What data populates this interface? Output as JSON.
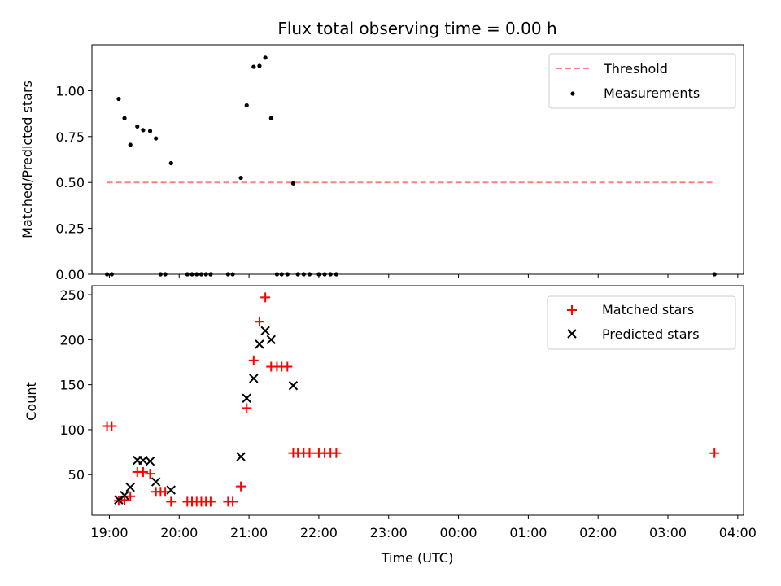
{
  "chart_data": [
    {
      "type": "scatter",
      "title": "Flux total observing time = 0.00 h",
      "xlabel": "",
      "ylabel": "Matched/Predicted stars",
      "xlim": [
        "18:45",
        "04:05"
      ],
      "ylim": [
        0,
        1.25
      ],
      "yticks": [
        "0.00",
        "0.25",
        "0.50",
        "0.75",
        "1.00"
      ],
      "legend_position": "top-right",
      "threshold": {
        "name": "Threshold",
        "value": 0.5,
        "x_range": [
          "18:58",
          "03:40"
        ],
        "color": "#ff8080",
        "style": "dashed"
      },
      "series": [
        {
          "name": "Measurements",
          "marker": "dot",
          "color": "#000000",
          "points": [
            {
              "x": "18:58",
              "y": 0
            },
            {
              "x": "19:02",
              "y": 0
            },
            {
              "x": "19:08",
              "y": 0.955
            },
            {
              "x": "19:13",
              "y": 0.85
            },
            {
              "x": "19:18",
              "y": 0.705
            },
            {
              "x": "19:24",
              "y": 0.805
            },
            {
              "x": "19:29",
              "y": 0.785
            },
            {
              "x": "19:35",
              "y": 0.78
            },
            {
              "x": "19:40",
              "y": 0.74
            },
            {
              "x": "19:44",
              "y": 0
            },
            {
              "x": "19:48",
              "y": 0
            },
            {
              "x": "19:53",
              "y": 0.605
            },
            {
              "x": "20:07",
              "y": 0
            },
            {
              "x": "20:11",
              "y": 0
            },
            {
              "x": "20:15",
              "y": 0
            },
            {
              "x": "20:19",
              "y": 0
            },
            {
              "x": "20:23",
              "y": 0
            },
            {
              "x": "20:27",
              "y": 0
            },
            {
              "x": "20:42",
              "y": 0
            },
            {
              "x": "20:46",
              "y": 0
            },
            {
              "x": "20:53",
              "y": 0.525
            },
            {
              "x": "20:58",
              "y": 0.92
            },
            {
              "x": "21:04",
              "y": 1.13
            },
            {
              "x": "21:09",
              "y": 1.135
            },
            {
              "x": "21:14",
              "y": 1.18
            },
            {
              "x": "21:19",
              "y": 0.85
            },
            {
              "x": "21:24",
              "y": 0
            },
            {
              "x": "21:28",
              "y": 0
            },
            {
              "x": "21:33",
              "y": 0
            },
            {
              "x": "21:38",
              "y": 0.495
            },
            {
              "x": "21:42",
              "y": 0
            },
            {
              "x": "21:47",
              "y": 0
            },
            {
              "x": "21:52",
              "y": 0
            },
            {
              "x": "22:00",
              "y": 0
            },
            {
              "x": "22:05",
              "y": 0
            },
            {
              "x": "22:10",
              "y": 0
            },
            {
              "x": "22:15",
              "y": 0
            },
            {
              "x": "03:40",
              "y": 0
            }
          ]
        }
      ]
    },
    {
      "type": "scatter",
      "title": "",
      "xlabel": "Time (UTC)",
      "ylabel": "Count",
      "xlim": [
        "18:45",
        "04:05"
      ],
      "ylim": [
        5,
        260
      ],
      "xticks": [
        "19:00",
        "20:00",
        "21:00",
        "22:00",
        "23:00",
        "00:00",
        "01:00",
        "02:00",
        "03:00",
        "04:00"
      ],
      "yticks": [
        "50",
        "100",
        "150",
        "200",
        "250"
      ],
      "legend_position": "top-right",
      "series": [
        {
          "name": "Matched stars",
          "marker": "plus",
          "color": "#ff0000",
          "points": [
            {
              "x": "18:58",
              "y": 104
            },
            {
              "x": "19:02",
              "y": 104
            },
            {
              "x": "19:08",
              "y": 21
            },
            {
              "x": "19:13",
              "y": 22
            },
            {
              "x": "19:18",
              "y": 26
            },
            {
              "x": "19:24",
              "y": 53
            },
            {
              "x": "19:29",
              "y": 53
            },
            {
              "x": "19:35",
              "y": 51
            },
            {
              "x": "19:40",
              "y": 31
            },
            {
              "x": "19:44",
              "y": 31
            },
            {
              "x": "19:48",
              "y": 31
            },
            {
              "x": "19:53",
              "y": 20
            },
            {
              "x": "20:07",
              "y": 20
            },
            {
              "x": "20:11",
              "y": 20
            },
            {
              "x": "20:15",
              "y": 20
            },
            {
              "x": "20:19",
              "y": 20
            },
            {
              "x": "20:23",
              "y": 20
            },
            {
              "x": "20:27",
              "y": 20
            },
            {
              "x": "20:42",
              "y": 20
            },
            {
              "x": "20:46",
              "y": 20
            },
            {
              "x": "20:53",
              "y": 37
            },
            {
              "x": "20:58",
              "y": 124
            },
            {
              "x": "21:04",
              "y": 177
            },
            {
              "x": "21:09",
              "y": 220
            },
            {
              "x": "21:14",
              "y": 247
            },
            {
              "x": "21:19",
              "y": 170
            },
            {
              "x": "21:24",
              "y": 170
            },
            {
              "x": "21:28",
              "y": 170
            },
            {
              "x": "21:33",
              "y": 170
            },
            {
              "x": "21:38",
              "y": 74
            },
            {
              "x": "21:42",
              "y": 74
            },
            {
              "x": "21:47",
              "y": 74
            },
            {
              "x": "21:52",
              "y": 74
            },
            {
              "x": "22:00",
              "y": 74
            },
            {
              "x": "22:05",
              "y": 74
            },
            {
              "x": "22:10",
              "y": 74
            },
            {
              "x": "22:15",
              "y": 74
            },
            {
              "x": "03:40",
              "y": 74
            }
          ]
        },
        {
          "name": "Predicted stars",
          "marker": "x",
          "color": "#000000",
          "points": [
            {
              "x": "19:08",
              "y": 22
            },
            {
              "x": "19:13",
              "y": 27
            },
            {
              "x": "19:18",
              "y": 36
            },
            {
              "x": "19:24",
              "y": 66
            },
            {
              "x": "19:29",
              "y": 66
            },
            {
              "x": "19:35",
              "y": 65
            },
            {
              "x": "19:40",
              "y": 42
            },
            {
              "x": "19:53",
              "y": 33
            },
            {
              "x": "20:53",
              "y": 70
            },
            {
              "x": "20:58",
              "y": 135
            },
            {
              "x": "21:04",
              "y": 157
            },
            {
              "x": "21:09",
              "y": 195
            },
            {
              "x": "21:14",
              "y": 210
            },
            {
              "x": "21:19",
              "y": 200
            },
            {
              "x": "21:38",
              "y": 149
            }
          ]
        }
      ]
    }
  ]
}
